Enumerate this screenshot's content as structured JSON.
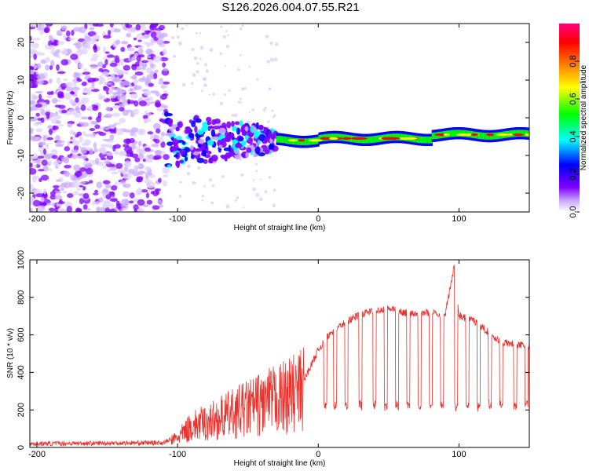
{
  "title": "S126.2026.004.07.55.R21",
  "chart_data": [
    {
      "type": "heatmap",
      "name": "spectrogram",
      "xlabel": "Height of straight line (km)",
      "ylabel": "Frequency (Hz)",
      "xlim": [
        -205,
        150
      ],
      "ylim": [
        -25,
        25
      ],
      "xticks": [
        -200,
        -100,
        0,
        100
      ],
      "yticks": [
        -20,
        -10,
        0,
        10,
        20
      ],
      "colorbar": {
        "label": "Normalized spectral amplitude",
        "range": [
          0.0,
          1.0
        ],
        "ticks": [
          "0.0",
          "0.2",
          "0.4",
          "0.6",
          "0.8"
        ],
        "colors": [
          "#ffffff",
          "#c9a9ff",
          "#8000ff",
          "#0000ff",
          "#00ffff",
          "#00ff00",
          "#ffff00",
          "#ff8000",
          "#ff0000",
          "#ff0080"
        ]
      },
      "description_ridges": [
        {
          "x_start": -205,
          "x_end": -108,
          "kind": "noise"
        },
        {
          "x_start": -108,
          "x_end": -30,
          "kind": "scattered",
          "freq_center": -6
        },
        {
          "x_start": -30,
          "x_end": 150,
          "kind": "tone",
          "freq": [
            -6,
            -5,
            -4.5,
            -4
          ]
        }
      ]
    },
    {
      "type": "line",
      "name": "snr",
      "xlabel": "Height of straight line (km)",
      "ylabel": "SNR (10 * v/v)",
      "xlim": [
        -205,
        150
      ],
      "ylim": [
        0,
        1000
      ],
      "xticks": [
        -200,
        -100,
        0,
        100
      ],
      "yticks": [
        0,
        200,
        400,
        600,
        800,
        1000
      ],
      "color": "#e8322e",
      "x": [
        -205,
        -110,
        -100,
        -90,
        -80,
        -70,
        -60,
        -50,
        -40,
        -30,
        -20,
        -10,
        0,
        10,
        20,
        30,
        40,
        50,
        60,
        70,
        80,
        90,
        97,
        100,
        110,
        120,
        130,
        150
      ],
      "values": [
        20,
        25,
        60,
        130,
        150,
        180,
        210,
        240,
        270,
        290,
        320,
        360,
        520,
        620,
        670,
        710,
        730,
        740,
        720,
        715,
        720,
        700,
        980,
        700,
        680,
        620,
        560,
        540
      ],
      "dips": [
        5,
        12,
        20,
        30,
        40,
        48,
        56,
        64,
        72,
        80,
        88,
        98,
        106,
        114,
        122,
        130,
        140,
        148
      ],
      "dip_floor": 210
    }
  ]
}
